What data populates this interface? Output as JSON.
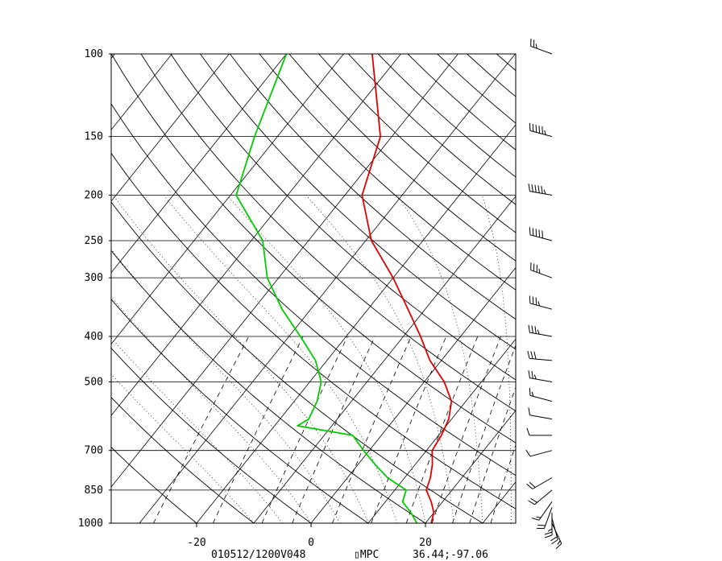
{
  "chart_data": {
    "type": "line",
    "subtype": "skew-t log-p",
    "y_ticks": [
      "100",
      "150",
      "200",
      "250",
      "300",
      "400",
      "500",
      "700",
      "850",
      "1000"
    ],
    "y_tick_values": [
      100,
      150,
      200,
      250,
      300,
      400,
      500,
      700,
      850,
      1000
    ],
    "x_ticks": [
      "-20",
      "0",
      "20"
    ],
    "x_tick_values": [
      -20,
      0,
      20
    ],
    "ylim": [
      1000,
      100
    ],
    "xlim": [
      -34,
      35
    ],
    "series": [
      {
        "color": "#e00000",
        "points": [
          {
            "p": 1000,
            "t": 21
          },
          {
            "p": 950,
            "t": 20
          },
          {
            "p": 900,
            "t": 18
          },
          {
            "p": 850,
            "t": 15.5
          },
          {
            "p": 800,
            "t": 14.5
          },
          {
            "p": 750,
            "t": 13
          },
          {
            "p": 700,
            "t": 11
          },
          {
            "p": 650,
            "t": 10.5
          },
          {
            "p": 600,
            "t": 9.5
          },
          {
            "p": 550,
            "t": 7.5
          },
          {
            "p": 500,
            "t": 3.5
          },
          {
            "p": 450,
            "t": -2
          },
          {
            "p": 400,
            "t": -7
          },
          {
            "p": 350,
            "t": -13
          },
          {
            "p": 300,
            "t": -20
          },
          {
            "p": 250,
            "t": -29
          },
          {
            "p": 200,
            "t": -37
          },
          {
            "p": 150,
            "t": -42
          },
          {
            "p": 100,
            "t": -55
          }
        ]
      },
      {
        "color": "#00cc00",
        "points": [
          {
            "p": 1000,
            "t": 18.5
          },
          {
            "p": 950,
            "t": 16
          },
          {
            "p": 900,
            "t": 13
          },
          {
            "p": 850,
            "t": 12
          },
          {
            "p": 800,
            "t": 7
          },
          {
            "p": 750,
            "t": 3
          },
          {
            "p": 700,
            "t": -1
          },
          {
            "p": 650,
            "t": -5
          },
          {
            "p": 620,
            "t": -16
          },
          {
            "p": 600,
            "t": -15
          },
          {
            "p": 550,
            "t": -16
          },
          {
            "p": 500,
            "t": -18
          },
          {
            "p": 450,
            "t": -22
          },
          {
            "p": 400,
            "t": -28
          },
          {
            "p": 350,
            "t": -35
          },
          {
            "p": 300,
            "t": -42
          },
          {
            "p": 250,
            "t": -48
          },
          {
            "p": 200,
            "t": -59
          },
          {
            "p": 150,
            "t": -64
          },
          {
            "p": 100,
            "t": -70
          }
        ]
      }
    ],
    "wind_barbs": [
      {
        "p": 1000,
        "dir": 155,
        "spd": 15
      },
      {
        "p": 975,
        "dir": 165,
        "spd": 20
      },
      {
        "p": 950,
        "dir": 180,
        "spd": 25
      },
      {
        "p": 925,
        "dir": 200,
        "spd": 20
      },
      {
        "p": 900,
        "dir": 215,
        "spd": 15
      },
      {
        "p": 850,
        "dir": 230,
        "spd": 20
      },
      {
        "p": 800,
        "dir": 240,
        "spd": 20
      },
      {
        "p": 700,
        "dir": 255,
        "spd": 10
      },
      {
        "p": 650,
        "dir": 270,
        "spd": 10
      },
      {
        "p": 600,
        "dir": 280,
        "spd": 10
      },
      {
        "p": 550,
        "dir": 285,
        "spd": 15
      },
      {
        "p": 500,
        "dir": 280,
        "spd": 25
      },
      {
        "p": 450,
        "dir": 275,
        "spd": 30
      },
      {
        "p": 400,
        "dir": 280,
        "spd": 35
      },
      {
        "p": 350,
        "dir": 285,
        "spd": 35
      },
      {
        "p": 300,
        "dir": 290,
        "spd": 35
      },
      {
        "p": 250,
        "dir": 285,
        "spd": 50
      },
      {
        "p": 200,
        "dir": 280,
        "spd": 55
      },
      {
        "p": 150,
        "dir": 285,
        "spd": 55
      },
      {
        "p": 100,
        "dir": 290,
        "spd": 25
      }
    ],
    "grid": true
  },
  "footer": {
    "valid_time": "010512/1200V048",
    "source": "▯MPC",
    "location": "36.44;-97.06"
  },
  "colors": {
    "temperature": "#e00000",
    "dewpoint": "#00cc00",
    "grid": "#000000",
    "background": "#ffffff"
  }
}
